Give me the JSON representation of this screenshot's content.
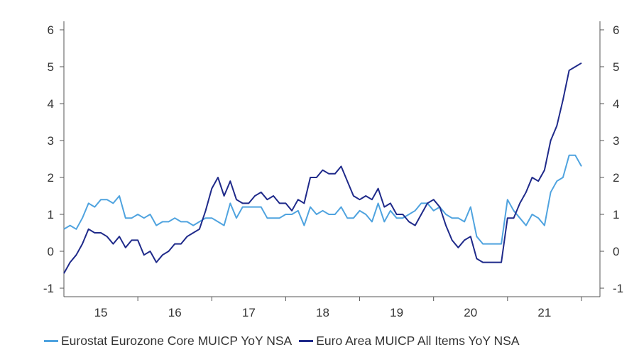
{
  "chart_data": {
    "type": "line",
    "title": "",
    "xlabel": "",
    "ylabel": "",
    "ylim": [
      -1,
      6
    ],
    "yticks": [
      "6",
      "5",
      "4",
      "3",
      "2",
      "1",
      "0",
      "-1"
    ],
    "y2ticks": [
      "6",
      "5",
      "4",
      "3",
      "2",
      "1",
      "0",
      "-1"
    ],
    "xlim": [
      2014.5,
      2021.75
    ],
    "xticks": [
      {
        "label": "15",
        "x": 2015
      },
      {
        "label": "16",
        "x": 2016
      },
      {
        "label": "17",
        "x": 2017
      },
      {
        "label": "18",
        "x": 2018
      },
      {
        "label": "19",
        "x": 2019
      },
      {
        "label": "20",
        "x": 2020
      },
      {
        "label": "21",
        "x": 2021
      }
    ],
    "grid": false,
    "legend_position": "bottom",
    "x_start": 2014.5,
    "x_step_months": 1,
    "series": [
      {
        "name": "Eurostat Eurozone Core MUICP YoY NSA",
        "color": "#4fa3df",
        "values": [
          0.6,
          0.7,
          0.6,
          0.9,
          1.3,
          1.2,
          1.4,
          1.4,
          1.3,
          1.5,
          0.9,
          0.9,
          1.0,
          0.9,
          1.0,
          0.7,
          0.8,
          0.8,
          0.9,
          0.8,
          0.8,
          0.7,
          0.8,
          0.9,
          0.9,
          0.8,
          0.7,
          1.3,
          0.9,
          1.2,
          1.2,
          1.2,
          1.2,
          0.9,
          0.9,
          0.9,
          1.0,
          1.0,
          1.1,
          0.7,
          1.2,
          1.0,
          1.1,
          1.0,
          1.0,
          1.2,
          0.9,
          0.9,
          1.1,
          1.0,
          0.8,
          1.3,
          0.8,
          1.1,
          0.9,
          0.9,
          1.0,
          1.1,
          1.3,
          1.3,
          1.1,
          1.2,
          1.0,
          0.9,
          0.9,
          0.8,
          1.2,
          0.4,
          0.2,
          0.2,
          0.2,
          0.2,
          1.4,
          1.1,
          0.9,
          0.7,
          1.0,
          0.9,
          0.7,
          1.6,
          1.9,
          2.0,
          2.6,
          2.6,
          2.3
        ]
      },
      {
        "name": "Euro Area MUICP All Items YoY NSA",
        "color": "#1f2a8a",
        "values": [
          -0.6,
          -0.3,
          -0.1,
          0.2,
          0.6,
          0.5,
          0.5,
          0.4,
          0.2,
          0.4,
          0.1,
          0.3,
          0.3,
          -0.1,
          0.0,
          -0.3,
          -0.1,
          0.0,
          0.2,
          0.2,
          0.4,
          0.5,
          0.6,
          1.1,
          1.7,
          2.0,
          1.5,
          1.9,
          1.4,
          1.3,
          1.3,
          1.5,
          1.6,
          1.4,
          1.5,
          1.3,
          1.3,
          1.1,
          1.4,
          1.3,
          2.0,
          2.0,
          2.2,
          2.1,
          2.1,
          2.3,
          1.9,
          1.5,
          1.4,
          1.5,
          1.4,
          1.7,
          1.2,
          1.3,
          1.0,
          1.0,
          0.8,
          0.7,
          1.0,
          1.3,
          1.4,
          1.2,
          0.7,
          0.3,
          0.1,
          0.3,
          0.4,
          -0.2,
          -0.3,
          -0.3,
          -0.3,
          -0.3,
          0.9,
          0.9,
          1.3,
          1.6,
          2.0,
          1.9,
          2.2,
          3.0,
          3.4,
          4.1,
          4.9,
          5.0,
          5.1
        ]
      }
    ]
  }
}
